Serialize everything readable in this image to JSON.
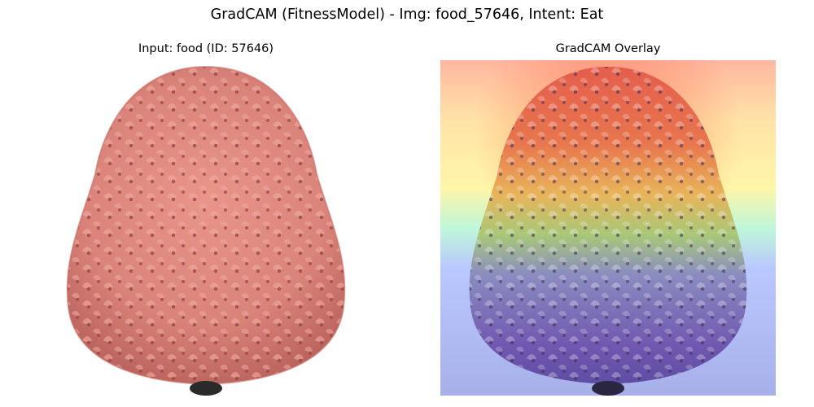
{
  "figure": {
    "suptitle": "GradCAM (FitnessModel) - Img: food_57646, Intent: Eat"
  },
  "panels": [
    {
      "title": "Input: food (ID: 57646)",
      "content": "raw food photograph of pink dragon-fruit-like textured pastry"
    },
    {
      "title": "GradCAM Overlay",
      "content": "same photograph with jet colormap heatmap overlay"
    }
  ],
  "colors": {
    "food_base": "#d9837a",
    "food_shadow": "#a8524e",
    "food_highlight": "#f0a89c",
    "heat_hot": "#ff3b1f",
    "heat_warm": "#ffd84a",
    "heat_mid": "#8fffd0",
    "heat_cool": "#7c86ff",
    "heat_cold": "#4a4ab8"
  }
}
